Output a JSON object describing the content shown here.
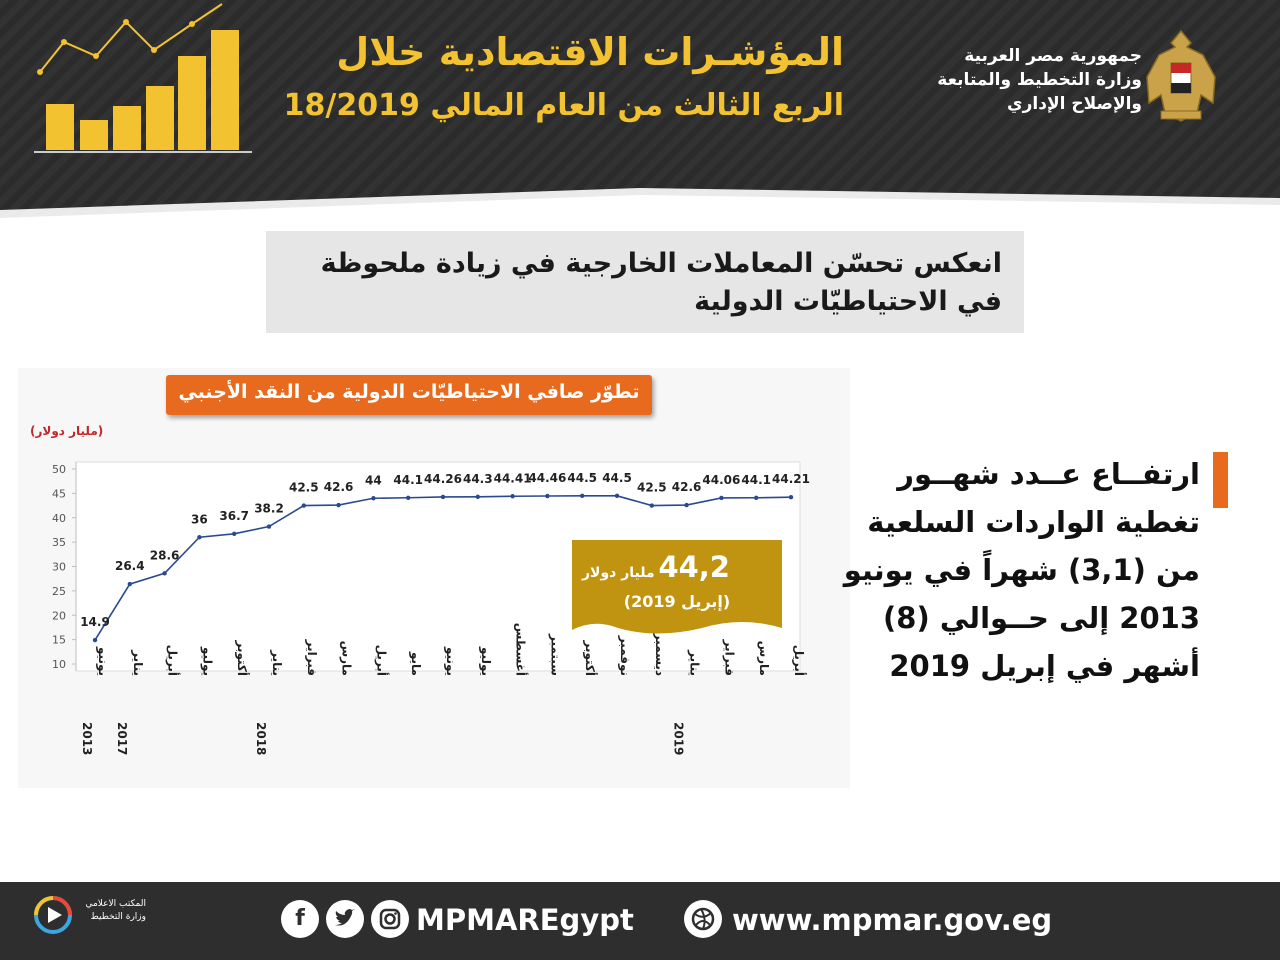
{
  "header": {
    "title_main": "المؤشـرات الاقتصادية خلال",
    "title_sub": "الربع الثالث من العام المالي 18/2019",
    "ministry_lines": [
      "جمهورية مصر العربية",
      "وزارة التخطيط والمتابعة",
      "والإصلاح الإداري"
    ],
    "colors": {
      "accent": "#f2c230",
      "background": "#2b2b2b"
    }
  },
  "headline": {
    "text": "انعكس تحسّن المعاملات الخارجية في زيادة ملحوظة في الاحتياطيّات الدولية"
  },
  "chart_data": {
    "type": "line",
    "title": "تطوّر صافي الاحتياطيّات الدولية من النقد الأجنبي",
    "ylabel": "(مليار دولار)",
    "xlabel": "",
    "ylim": [
      10,
      50
    ],
    "yticks": [
      10,
      15,
      20,
      25,
      30,
      35,
      40,
      45,
      50
    ],
    "grid": false,
    "categories": [
      "يونيو",
      "يناير",
      "أبريل",
      "يوليو",
      "أكتوبر",
      "يناير",
      "فبراير",
      "مارس",
      "أبريل",
      "مايو",
      "يونيو",
      "يوليو",
      "أغسطس",
      "سبتمبر",
      "أكتوبر",
      "نوفمبر",
      "ديسمبر",
      "يناير",
      "فبراير",
      "مارس",
      "أبريل"
    ],
    "year_labels": [
      "2013",
      "2017",
      "",
      "",
      "",
      "2018",
      "",
      "",
      "",
      "",
      "",
      "",
      "",
      "",
      "",
      "",
      "",
      "2019",
      "",
      "",
      ""
    ],
    "series": [
      {
        "values": [
          14.9,
          26.4,
          28.6,
          36,
          36.7,
          38.2,
          42.5,
          42.6,
          44,
          44.1,
          44.26,
          44.3,
          44.41,
          44.46,
          44.5,
          44.5,
          42.5,
          42.6,
          44.06,
          44.1,
          44.21
        ],
        "color": "#2a4a8e"
      }
    ],
    "data_labels": [
      "14.9",
      "26.4",
      "28.6",
      "36",
      "36.7",
      "38.2",
      "42.5",
      "42.6",
      "44",
      "44.1",
      "44.26",
      "44.3",
      "44.41",
      "44.46",
      "44.5",
      "44.5",
      "42.5",
      "42.6",
      "44.06",
      "44.1",
      "44.21"
    ],
    "callout": {
      "value": "44,2",
      "unit": "مليار دولار",
      "date": "(إبريل 2019)",
      "color": "#c09410"
    }
  },
  "side_note": {
    "text": "ارتفــاع عــدد شهــور تغطية الواردات السلعية من (3,1) شهراً في يونيو 2013 إلى حــوالي (8) أشهر في إبريل 2019",
    "bar_color": "#e86a1f"
  },
  "footer": {
    "handle": "MPMAREgypt",
    "website": "www.mpmar.gov.eg",
    "media_office": "المكتب الاعلامي وزارة التخطيط",
    "icons": [
      "facebook-icon",
      "twitter-icon",
      "instagram-icon",
      "globe-icon"
    ]
  }
}
